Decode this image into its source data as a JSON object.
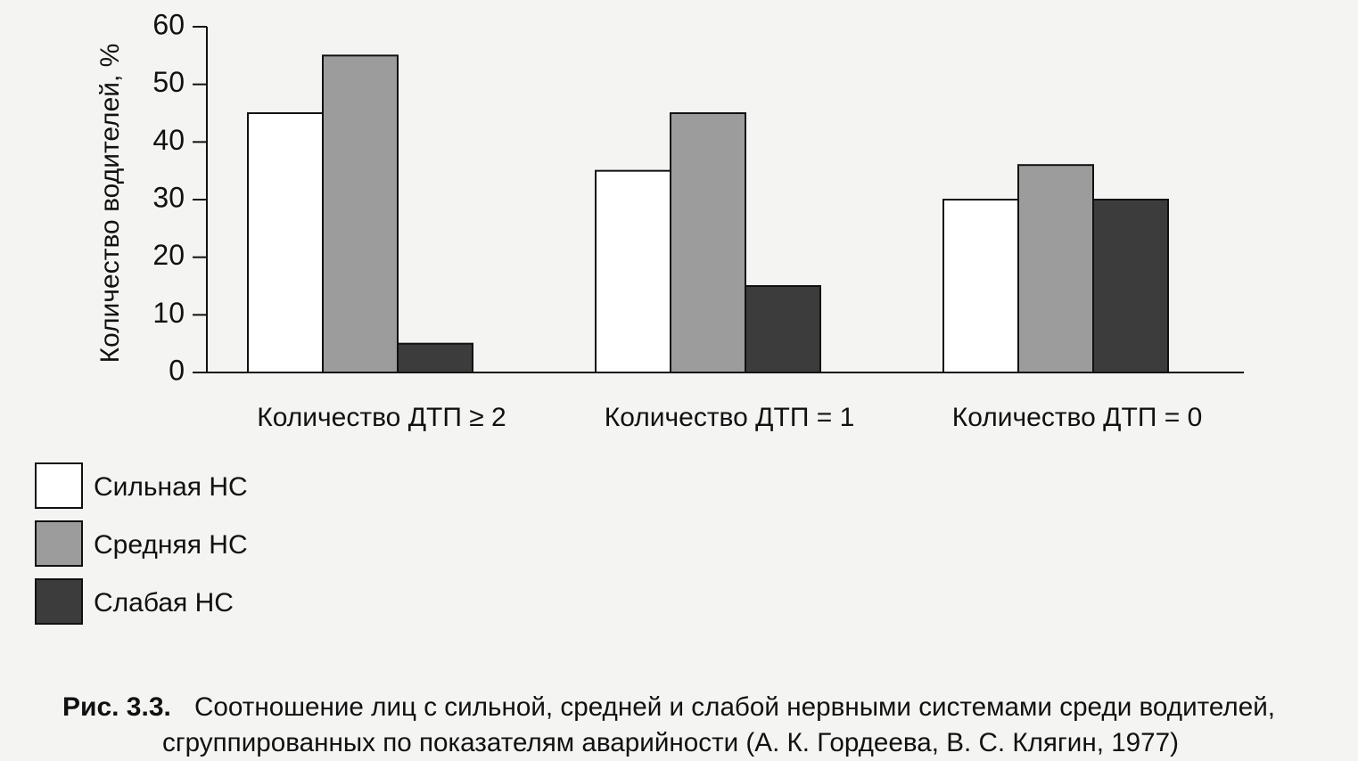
{
  "chart_data": {
    "type": "bar",
    "y_label": "Количество водителей, %",
    "categories": [
      "Количество ДТП ≥ 2",
      "Количество ДТП = 1",
      "Количество ДТП = 0"
    ],
    "series": [
      {
        "name": "Сильная НС",
        "color": "#ffffff",
        "values": [
          45,
          35,
          30
        ]
      },
      {
        "name": "Средняя НС",
        "color": "#9c9c9c",
        "values": [
          55,
          45,
          36
        ]
      },
      {
        "name": "Слабая НС",
        "color": "#3c3c3c",
        "values": [
          5,
          15,
          30
        ]
      }
    ],
    "ylim": [
      0,
      60
    ],
    "yticks": [
      0,
      10,
      20,
      30,
      40,
      50,
      60
    ],
    "caption_label": "Рис. 3.3.",
    "caption_lines": [
      "Соотношение лиц с сильной, средней и слабой нервными системами среди водителей,",
      "сгруппированных по показателям аварийности (А. К. Гордеева, В. С. Клягин, 1977)"
    ]
  }
}
